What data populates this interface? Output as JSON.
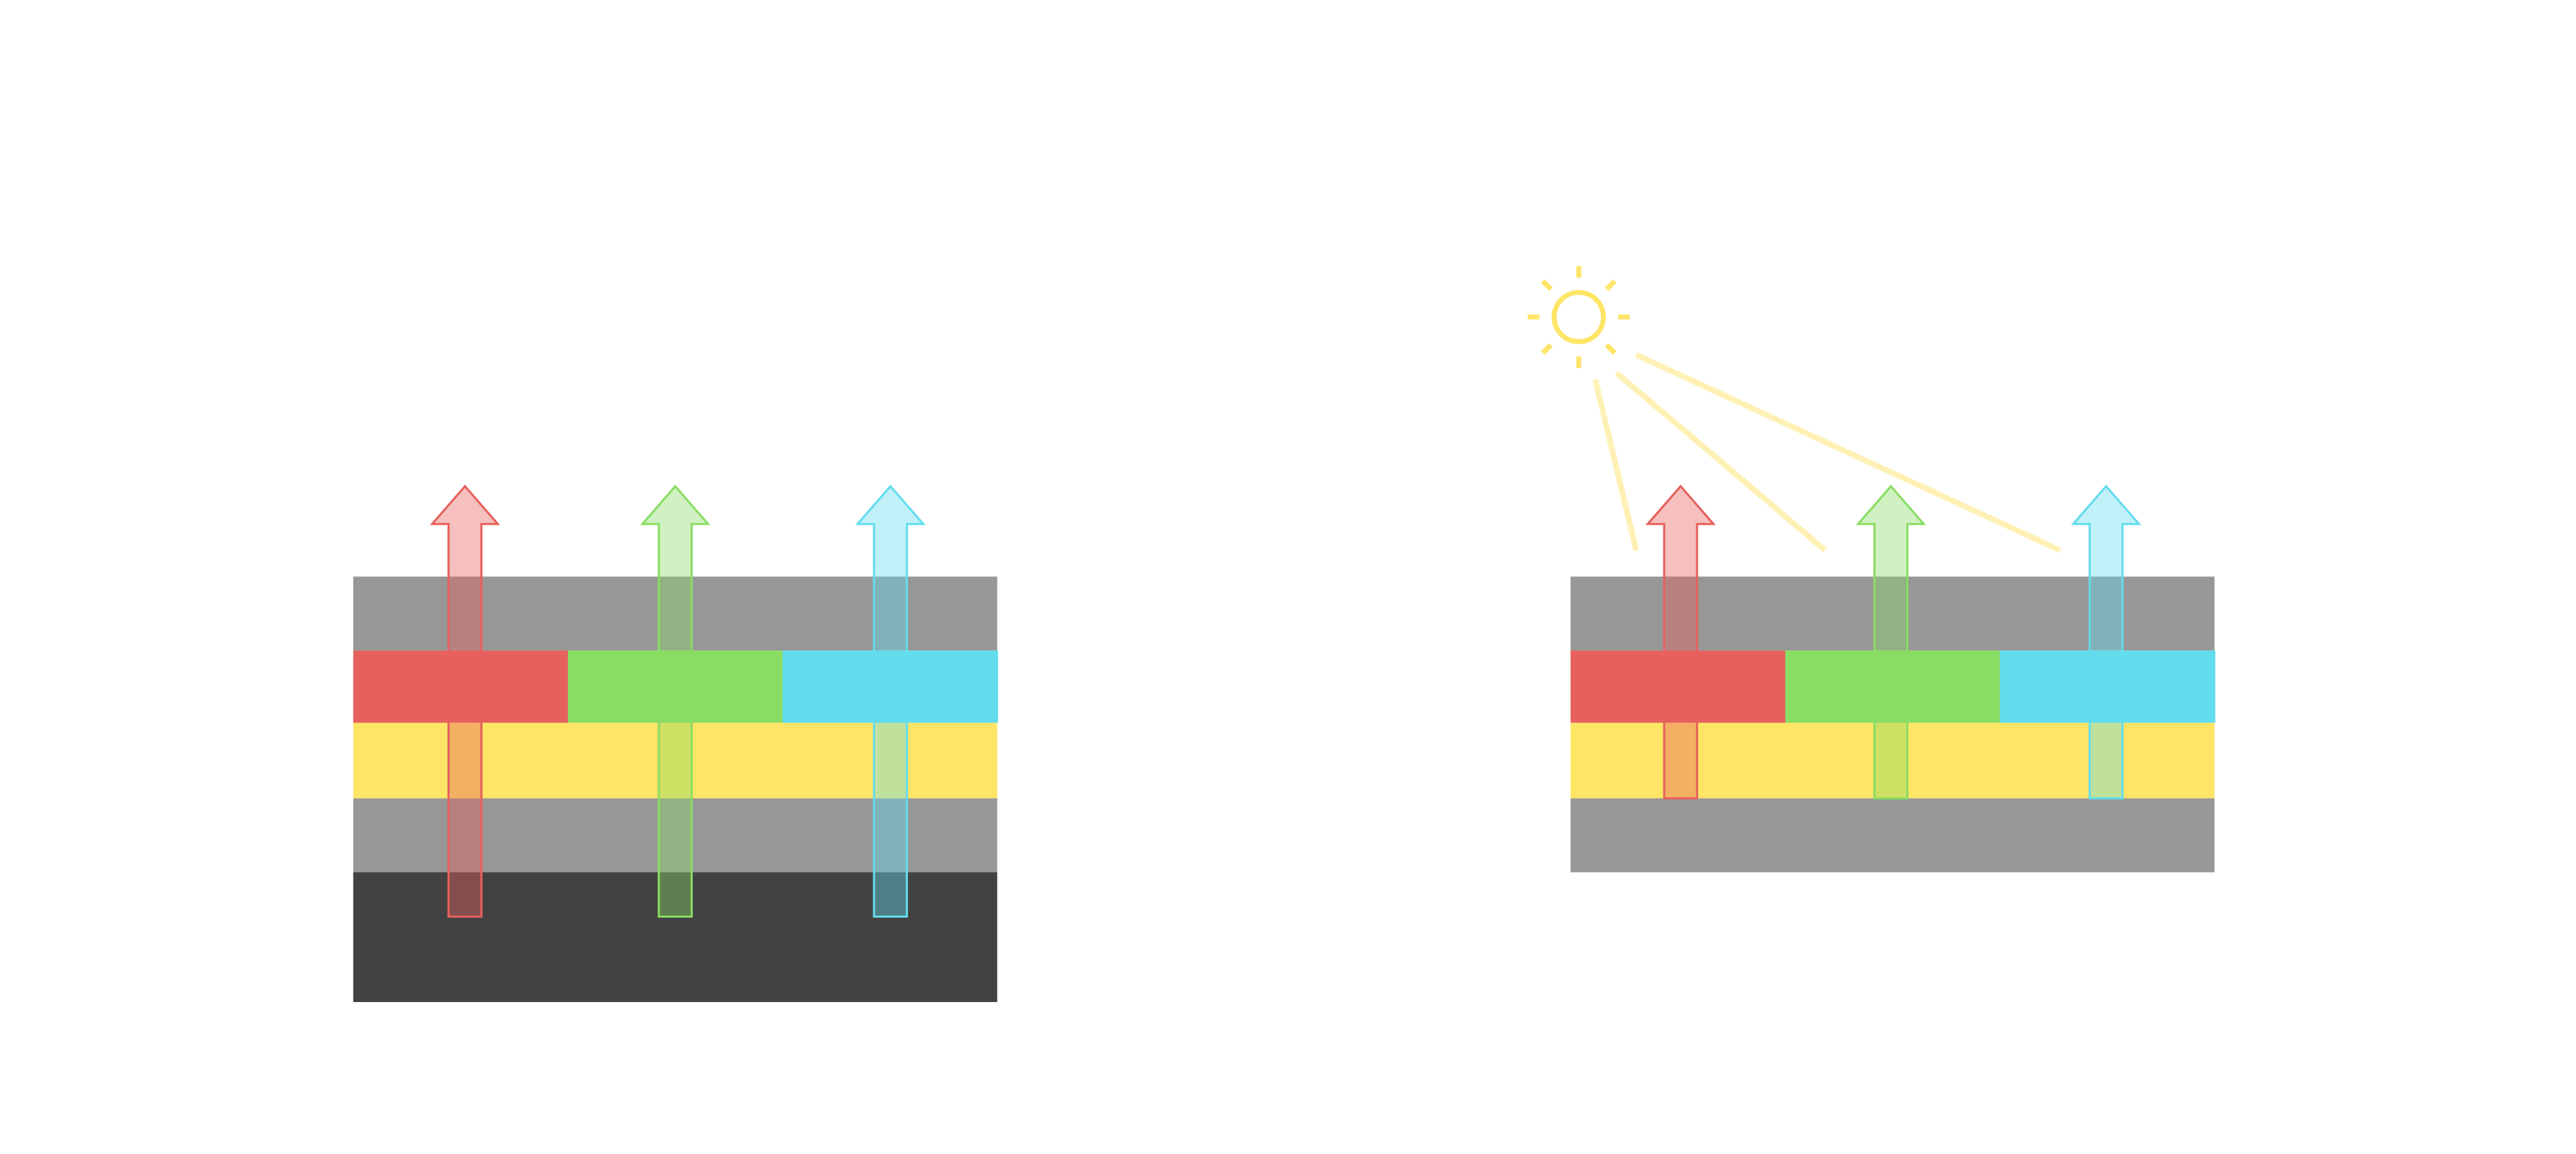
{
  "colors": {
    "gray_layer": "#979797",
    "dark_layer": "#424242",
    "yellow_layer": "#FEE566",
    "red": "#E6615D",
    "green": "#89DD63",
    "cyan": "#63DCEE",
    "sun": "#FEE566",
    "sun_rays_light": "#FFF1B5"
  },
  "diagrams": [
    {
      "name": "emissive-stack",
      "layers": [
        "gray",
        "rgb",
        "yellow",
        "gray",
        "dark"
      ],
      "arrows": [
        "red",
        "green",
        "cyan"
      ],
      "light_source": false
    },
    {
      "name": "reflective-stack",
      "layers": [
        "gray",
        "rgb",
        "yellow",
        "gray"
      ],
      "arrows": [
        "red",
        "green",
        "cyan"
      ],
      "light_source": true,
      "icon": "sun-icon"
    }
  ]
}
